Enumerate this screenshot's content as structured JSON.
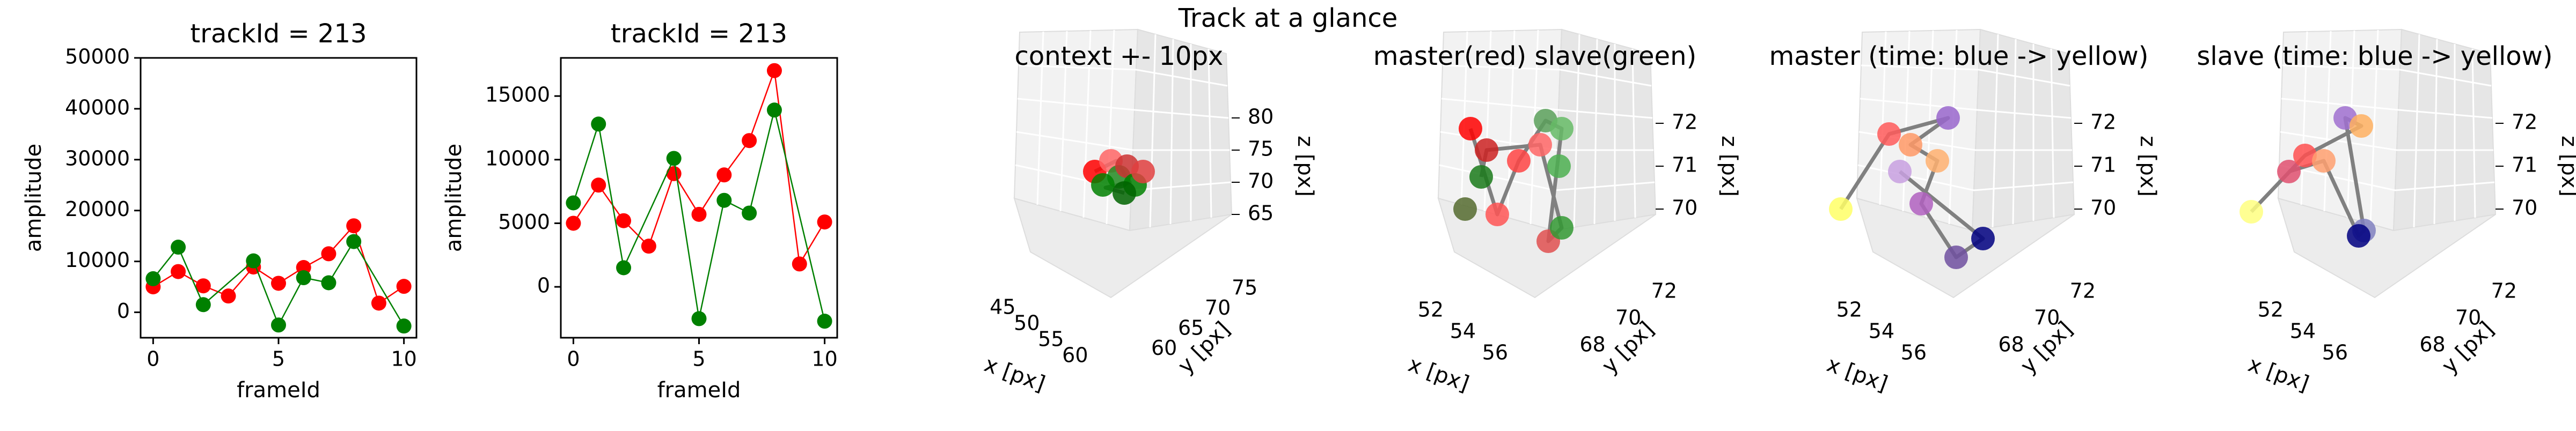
{
  "suptitle": "Track at a glance",
  "chart_data": [
    {
      "type": "line",
      "title": "trackId = 213",
      "xlabel": "frameId",
      "ylabel": "amplitude",
      "xlim": [
        -0.5,
        10.5
      ],
      "ylim": [
        -5000,
        50000
      ],
      "xticks": [
        "0",
        "5",
        "10"
      ],
      "yticks": [
        "0",
        "10000",
        "20000",
        "30000",
        "40000",
        "50000"
      ],
      "x": [
        0,
        1,
        2,
        3,
        4,
        5,
        6,
        7,
        8,
        9,
        10
      ],
      "series": [
        {
          "color": "#ff0000",
          "values": [
            5000,
            8000,
            5200,
            3200,
            8900,
            5700,
            8800,
            11500,
            17000,
            1800,
            5100
          ]
        },
        {
          "color": "#008000",
          "values": [
            6600,
            12800,
            1500,
            null,
            10100,
            -2500,
            6800,
            5800,
            13900,
            null,
            -2700
          ]
        }
      ]
    },
    {
      "type": "line",
      "title": "trackId = 213",
      "xlabel": "frameId",
      "ylabel": "amplitude",
      "xlim": [
        -0.5,
        10.5
      ],
      "ylim": [
        -4000,
        18000
      ],
      "xticks": [
        "0",
        "5",
        "10"
      ],
      "yticks": [
        "0",
        "5000",
        "10000",
        "15000"
      ],
      "x": [
        0,
        1,
        2,
        3,
        4,
        5,
        6,
        7,
        8,
        9,
        10
      ],
      "series": [
        {
          "color": "#ff0000",
          "values": [
            5000,
            8000,
            5200,
            3200,
            8900,
            5700,
            8800,
            11500,
            17000,
            1800,
            5100
          ]
        },
        {
          "color": "#008000",
          "values": [
            6600,
            12800,
            1500,
            null,
            10100,
            -2500,
            6800,
            5800,
            13900,
            null,
            -2700
          ]
        }
      ]
    },
    {
      "type": "scatter",
      "title": "context +- 10px",
      "xlabel": "x [px]",
      "ylabel": "y [px]",
      "zlabel": "z [px]",
      "xticks": [
        "45",
        "50",
        "55",
        "60"
      ],
      "yticks": [
        "60",
        "65",
        "70",
        "75"
      ],
      "zticks": [
        "65",
        "70",
        "75",
        "80"
      ]
    },
    {
      "type": "scatter",
      "title": "master(red) slave(green)",
      "xlabel": "x [px]",
      "ylabel": "y [px]",
      "zlabel": "z [px]",
      "xticks": [
        "52",
        "54",
        "56"
      ],
      "yticks": [
        "68",
        "70",
        "72"
      ],
      "zticks": [
        "70",
        "71",
        "72"
      ]
    },
    {
      "type": "scatter",
      "title": "master (time: blue -> yellow)",
      "xlabel": "x [px]",
      "ylabel": "y [px]",
      "zlabel": "z [px]",
      "xticks": [
        "52",
        "54",
        "56"
      ],
      "yticks": [
        "68",
        "70",
        "72"
      ],
      "zticks": [
        "70",
        "71",
        "72"
      ]
    },
    {
      "type": "scatter",
      "title": "slave (time: blue -> yellow)",
      "xlabel": "x [px]",
      "ylabel": "y [px]",
      "zlabel": "z [px]",
      "xticks": [
        "52",
        "54",
        "56"
      ],
      "yticks": [
        "68",
        "70",
        "72"
      ],
      "zticks": [
        "70",
        "71",
        "72"
      ]
    }
  ]
}
